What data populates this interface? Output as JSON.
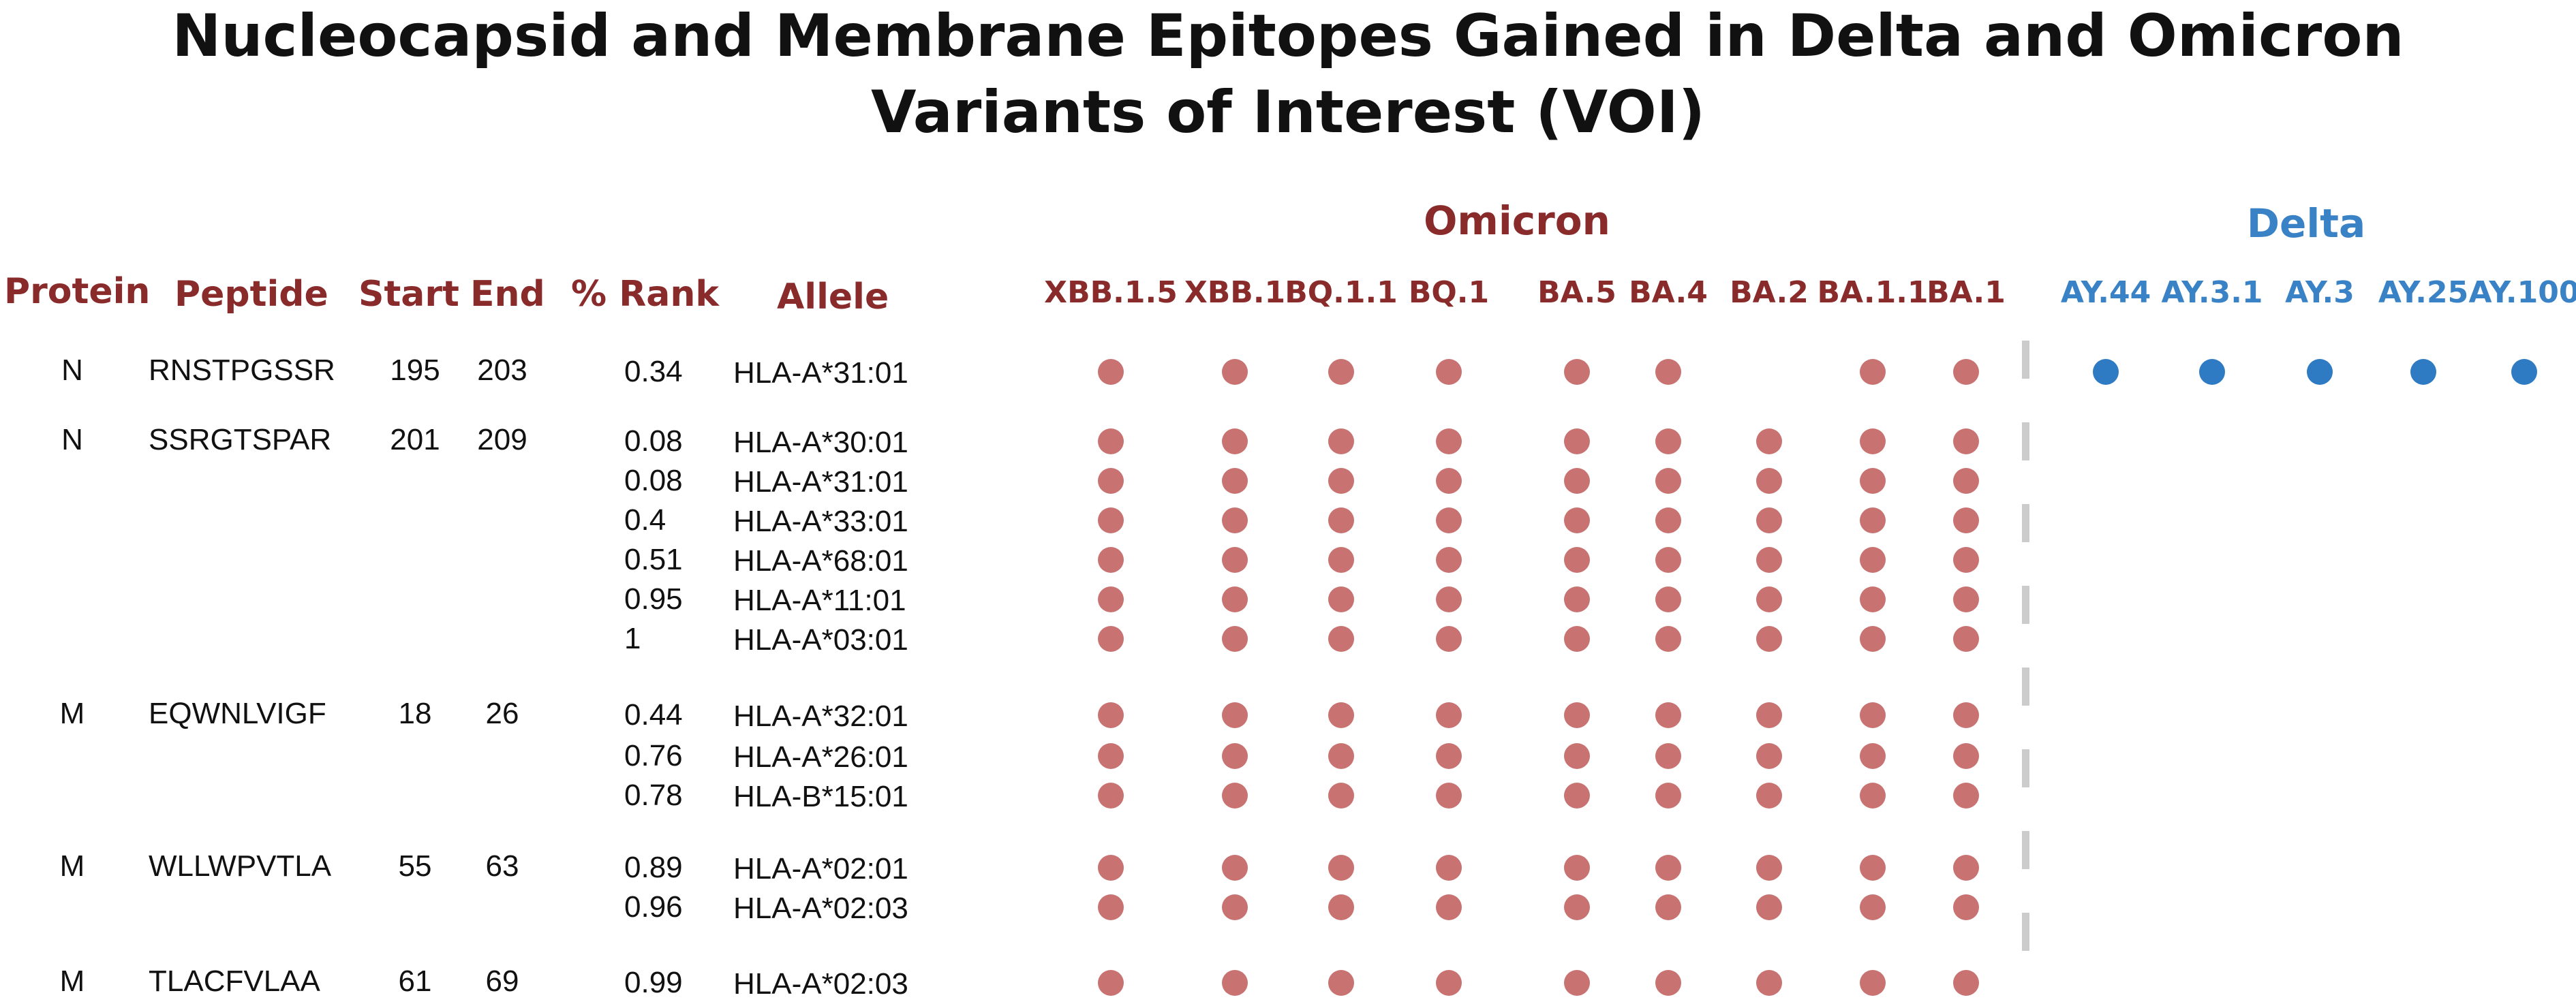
{
  "title": {
    "line1": "Nucleocapsid and Membrane Epitopes Gained in Delta and Omicron",
    "line2": "Variants of Interest (VOI)"
  },
  "colors": {
    "omicron": "#8a2b2b",
    "omicron_dot": "#c97272",
    "delta": "#3a82c6",
    "delta_dot": "#2e7bc4",
    "separator": "#cccccc"
  },
  "groups": {
    "omicron": "Omicron",
    "delta": "Delta"
  },
  "headers": {
    "protein": "Protein",
    "peptide": "Peptide",
    "start": "Start",
    "end": "End",
    "rank": "% Rank",
    "allele": "Allele"
  },
  "variants": {
    "omicron": [
      "XBB.1.5",
      "XBB.1",
      "BQ.1.1",
      "BQ.1",
      "BA.5",
      "BA.4",
      "BA.2",
      "BA.1.1",
      "BA.1"
    ],
    "delta": [
      "AY.44",
      "AY.3.1",
      "AY.3",
      "AY.25",
      "AY.100"
    ]
  },
  "epitopes": [
    {
      "protein": "N",
      "peptide": "RNSTPGSSR",
      "start": "195",
      "end": "203",
      "alleles": [
        {
          "rank": "0.34",
          "allele": "HLA-A*31:01",
          "omicron": [
            1,
            1,
            1,
            1,
            1,
            1,
            0,
            1,
            1
          ],
          "delta": [
            1,
            1,
            1,
            1,
            1
          ]
        }
      ]
    },
    {
      "protein": "N",
      "peptide": "SSRGTSPAR",
      "start": "201",
      "end": "209",
      "alleles": [
        {
          "rank": "0.08",
          "allele": "HLA-A*30:01",
          "omicron": [
            1,
            1,
            1,
            1,
            1,
            1,
            1,
            1,
            1
          ],
          "delta": [
            0,
            0,
            0,
            0,
            0
          ]
        },
        {
          "rank": "0.08",
          "allele": "HLA-A*31:01",
          "omicron": [
            1,
            1,
            1,
            1,
            1,
            1,
            1,
            1,
            1
          ],
          "delta": [
            0,
            0,
            0,
            0,
            0
          ]
        },
        {
          "rank": "0.4",
          "allele": "HLA-A*33:01",
          "omicron": [
            1,
            1,
            1,
            1,
            1,
            1,
            1,
            1,
            1
          ],
          "delta": [
            0,
            0,
            0,
            0,
            0
          ]
        },
        {
          "rank": "0.51",
          "allele": "HLA-A*68:01",
          "omicron": [
            1,
            1,
            1,
            1,
            1,
            1,
            1,
            1,
            1
          ],
          "delta": [
            0,
            0,
            0,
            0,
            0
          ]
        },
        {
          "rank": "0.95",
          "allele": "HLA-A*11:01",
          "omicron": [
            1,
            1,
            1,
            1,
            1,
            1,
            1,
            1,
            1
          ],
          "delta": [
            0,
            0,
            0,
            0,
            0
          ]
        },
        {
          "rank": "1",
          "allele": "HLA-A*03:01",
          "omicron": [
            1,
            1,
            1,
            1,
            1,
            1,
            1,
            1,
            1
          ],
          "delta": [
            0,
            0,
            0,
            0,
            0
          ]
        }
      ]
    },
    {
      "protein": "M",
      "peptide": "EQWNLVIGF",
      "start": "18",
      "end": "26",
      "alleles": [
        {
          "rank": "0.44",
          "allele": "HLA-A*32:01",
          "omicron": [
            1,
            1,
            1,
            1,
            1,
            1,
            1,
            1,
            1
          ],
          "delta": [
            0,
            0,
            0,
            0,
            0
          ]
        },
        {
          "rank": "0.76",
          "allele": "HLA-A*26:01",
          "omicron": [
            1,
            1,
            1,
            1,
            1,
            1,
            1,
            1,
            1
          ],
          "delta": [
            0,
            0,
            0,
            0,
            0
          ]
        },
        {
          "rank": "0.78",
          "allele": "HLA-B*15:01",
          "omicron": [
            1,
            1,
            1,
            1,
            1,
            1,
            1,
            1,
            1
          ],
          "delta": [
            0,
            0,
            0,
            0,
            0
          ]
        }
      ]
    },
    {
      "protein": "M",
      "peptide": "WLLWPVTLA",
      "start": "55",
      "end": "63",
      "alleles": [
        {
          "rank": "0.89",
          "allele": "HLA-A*02:01",
          "omicron": [
            1,
            1,
            1,
            1,
            1,
            1,
            1,
            1,
            1
          ],
          "delta": [
            0,
            0,
            0,
            0,
            0
          ]
        },
        {
          "rank": "0.96",
          "allele": "HLA-A*02:03",
          "omicron": [
            1,
            1,
            1,
            1,
            1,
            1,
            1,
            1,
            1
          ],
          "delta": [
            0,
            0,
            0,
            0,
            0
          ]
        }
      ]
    },
    {
      "protein": "M",
      "peptide": "TLACFVLAA",
      "start": "61",
      "end": "69",
      "alleles": [
        {
          "rank": "0.99",
          "allele": "HLA-A*02:03",
          "omicron": [
            1,
            1,
            1,
            1,
            1,
            1,
            1,
            1,
            1
          ],
          "delta": [
            0,
            0,
            0,
            0,
            0
          ]
        }
      ]
    }
  ]
}
